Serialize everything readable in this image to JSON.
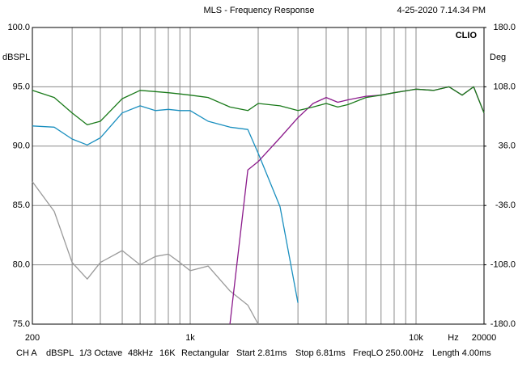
{
  "chart_data": {
    "type": "line",
    "title": "MLS - Frequency Response",
    "timestamp": "4-25-2020 7.14.34 PM",
    "brand": "CLIO",
    "ylabel": "dBSPL",
    "y2label": "Deg",
    "xlabel": "Hz",
    "xscale": "log",
    "grid": true,
    "x": [
      200,
      250,
      300,
      350,
      400,
      500,
      600,
      700,
      800,
      900,
      1000,
      1200,
      1500,
      1800,
      2000,
      2500,
      3000,
      3500,
      4000,
      4500,
      5000,
      6000,
      7000,
      8000,
      10000,
      12000,
      14000,
      16000,
      18000,
      20000
    ],
    "xlim": [
      200,
      20000
    ],
    "xticks": [
      200,
      {
        "value": 300,
        "label": null
      },
      {
        "value": 400,
        "label": null
      },
      {
        "value": 500,
        "label": null
      },
      {
        "value": 600,
        "label": null
      },
      {
        "value": 700,
        "label": null
      },
      {
        "value": 800,
        "label": null
      },
      {
        "value": 900,
        "label": null
      },
      {
        "value": 1000,
        "label": "1k"
      },
      {
        "value": 2000,
        "label": null
      },
      {
        "value": 3000,
        "label": null
      },
      {
        "value": 4000,
        "label": null
      },
      {
        "value": 5000,
        "label": null
      },
      {
        "value": 6000,
        "label": null
      },
      {
        "value": 7000,
        "label": null
      },
      {
        "value": 8000,
        "label": null
      },
      {
        "value": 9000,
        "label": null
      },
      {
        "value": 10000,
        "label": "10k"
      },
      20000
    ],
    "ylim": [
      75,
      100
    ],
    "yticks": [
      {
        "value": 75,
        "label": "75.0"
      },
      {
        "value": 80,
        "label": "80.0"
      },
      {
        "value": 85,
        "label": "85.0"
      },
      {
        "value": 90,
        "label": "90.0"
      },
      {
        "value": 95,
        "label": "95.0"
      },
      {
        "value": 100,
        "label": "100.0"
      }
    ],
    "y2lim": [
      -180,
      180
    ],
    "y2ticks": [
      {
        "value": -180,
        "label": "-180.0"
      },
      {
        "value": -108,
        "label": "-108.0"
      },
      {
        "value": -36,
        "label": "-36.0"
      },
      {
        "value": 36,
        "label": "36.0"
      },
      {
        "value": 108,
        "label": "108.0"
      },
      {
        "value": 180,
        "label": "180.0"
      }
    ],
    "series": [
      {
        "color": "#9a9a9a",
        "values": [
          87.0,
          84.5,
          80.2,
          78.8,
          80.2,
          81.2,
          80.0,
          80.7,
          80.9,
          80.2,
          79.5,
          79.9,
          77.8,
          76.6,
          75.0,
          null,
          null,
          null,
          null,
          null,
          null,
          null,
          null,
          null,
          null,
          null,
          null,
          null,
          null,
          null
        ]
      },
      {
        "color": "#1a8fbf",
        "values": [
          91.7,
          91.6,
          90.6,
          90.1,
          90.7,
          92.8,
          93.4,
          93.0,
          93.1,
          93.0,
          93.0,
          92.1,
          91.6,
          91.4,
          89.4,
          84.9,
          76.8,
          null,
          null,
          null,
          null,
          null,
          null,
          null,
          null,
          null,
          null,
          null,
          null,
          null
        ]
      },
      {
        "color": "#8b1a8b",
        "values": [
          null,
          null,
          null,
          null,
          null,
          null,
          null,
          null,
          null,
          null,
          null,
          null,
          75.0,
          88.0,
          88.7,
          90.7,
          92.4,
          93.6,
          94.1,
          93.7,
          93.9,
          94.2,
          94.3,
          94.5,
          94.8,
          94.7,
          95.0,
          94.3,
          95.0,
          92.8
        ]
      },
      {
        "color": "#1a7a1a",
        "values": [
          94.7,
          94.1,
          92.8,
          91.8,
          92.1,
          94.0,
          94.7,
          94.6,
          94.5,
          94.4,
          94.3,
          94.1,
          93.3,
          93.0,
          93.6,
          93.4,
          93.0,
          93.3,
          93.6,
          93.3,
          93.5,
          94.1,
          94.3,
          94.5,
          94.8,
          94.7,
          95.0,
          94.3,
          95.0,
          92.8
        ]
      }
    ],
    "footer": [
      "CH A",
      "dBSPL",
      "1/3 Octave",
      "48kHz",
      "16K",
      "Rectangular",
      "Start 2.81ms",
      "Stop 6.81ms",
      "FreqLO 250.00Hz",
      "Length 4.00ms"
    ]
  }
}
